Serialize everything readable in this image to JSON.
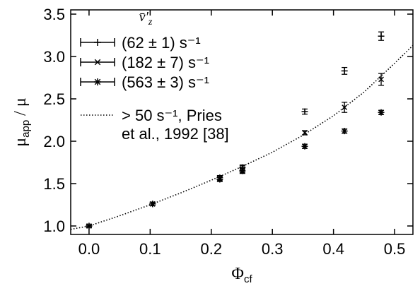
{
  "chart_data": {
    "type": "scatter",
    "xlabel": "Φ",
    "xlabel_sub": "cf",
    "ylabel": "μ",
    "ylabel_sub": "app",
    "ylabel_suffix": " / μ",
    "xlim": [
      -0.03,
      0.53
    ],
    "ylim": [
      0.9,
      3.55
    ],
    "x_ticks": [
      0.0,
      0.1,
      0.2,
      0.3,
      0.4,
      0.5
    ],
    "x_tick_labels": [
      "0.0",
      "0.1",
      "0.2",
      "0.3",
      "0.4",
      "0.5"
    ],
    "y_ticks": [
      1.0,
      1.5,
      2.0,
      2.5,
      3.0,
      3.5
    ],
    "y_tick_labels": [
      "1.0",
      "1.5",
      "2.0",
      "2.5",
      "3.0",
      "3.5"
    ],
    "grid": false,
    "legend_title": "v̄′",
    "legend_title_sub": "z",
    "legend_placement": "top-left",
    "series": [
      {
        "name": "(62 ± 1) s⁻¹",
        "marker": "plus",
        "points": [
          {
            "x": 0.0,
            "y": 1.0,
            "err": 0.015
          },
          {
            "x": 0.104,
            "y": 1.26,
            "err": 0.02
          },
          {
            "x": 0.214,
            "y": 1.57,
            "err": 0.025
          },
          {
            "x": 0.251,
            "y": 1.69,
            "err": 0.03
          },
          {
            "x": 0.353,
            "y": 2.35,
            "err": 0.03
          },
          {
            "x": 0.418,
            "y": 2.83,
            "err": 0.04
          },
          {
            "x": 0.478,
            "y": 3.24,
            "err": 0.05
          }
        ]
      },
      {
        "name": "(182 ± 7) s⁻¹",
        "marker": "cross",
        "points": [
          {
            "x": 0.0,
            "y": 1.0,
            "err": 0.015
          },
          {
            "x": 0.104,
            "y": 1.26,
            "err": 0.02
          },
          {
            "x": 0.214,
            "y": 1.56,
            "err": 0.03
          },
          {
            "x": 0.251,
            "y": 1.67,
            "err": 0.04
          },
          {
            "x": 0.353,
            "y": 2.1,
            "err": 0.025
          },
          {
            "x": 0.418,
            "y": 2.4,
            "err": 0.06
          },
          {
            "x": 0.478,
            "y": 2.73,
            "err": 0.07
          }
        ]
      },
      {
        "name": "(563 ± 3) s⁻¹",
        "marker": "star",
        "points": [
          {
            "x": 0.0,
            "y": 1.0,
            "err": 0.015
          },
          {
            "x": 0.104,
            "y": 1.26,
            "err": 0.02
          },
          {
            "x": 0.214,
            "y": 1.55,
            "err": 0.025
          },
          {
            "x": 0.251,
            "y": 1.65,
            "err": 0.03
          },
          {
            "x": 0.353,
            "y": 1.94,
            "err": 0.025
          },
          {
            "x": 0.418,
            "y": 2.12,
            "err": 0.025
          },
          {
            "x": 0.478,
            "y": 2.34,
            "err": 0.025
          }
        ]
      }
    ],
    "reference_line": {
      "name_line1": "> 50 s⁻¹, Pries",
      "name_line2": "et al., 1992 [38]",
      "style": "dotted",
      "x": [
        -0.03,
        0.0,
        0.05,
        0.1,
        0.15,
        0.2,
        0.25,
        0.3,
        0.35,
        0.4,
        0.45,
        0.5,
        0.53
      ],
      "y": [
        0.96,
        1.0,
        1.12,
        1.25,
        1.39,
        1.54,
        1.7,
        1.87,
        2.07,
        2.3,
        2.58,
        2.92,
        3.13
      ]
    }
  }
}
